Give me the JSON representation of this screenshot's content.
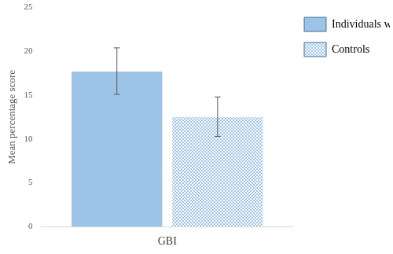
{
  "chart_data": {
    "type": "bar",
    "y_label": "Mean percentage score",
    "categories": [
      "GBI"
    ],
    "series": [
      {
        "name": "Individuals with JIA",
        "color": "#9dc3e6",
        "values": [
          17.7
        ],
        "error_low": [
          15.1
        ],
        "error_high": [
          20.4
        ]
      },
      {
        "name": "Controls",
        "color": "#9dc3e6",
        "marker": "dotted",
        "values": [
          12.5
        ],
        "error_low": [
          10.3
        ],
        "error_high": [
          14.8
        ]
      }
    ],
    "ylim": [
      0,
      25
    ],
    "yticks": [
      0,
      5,
      10,
      15,
      20,
      25
    ],
    "grid": false,
    "legend": "top-right"
  }
}
